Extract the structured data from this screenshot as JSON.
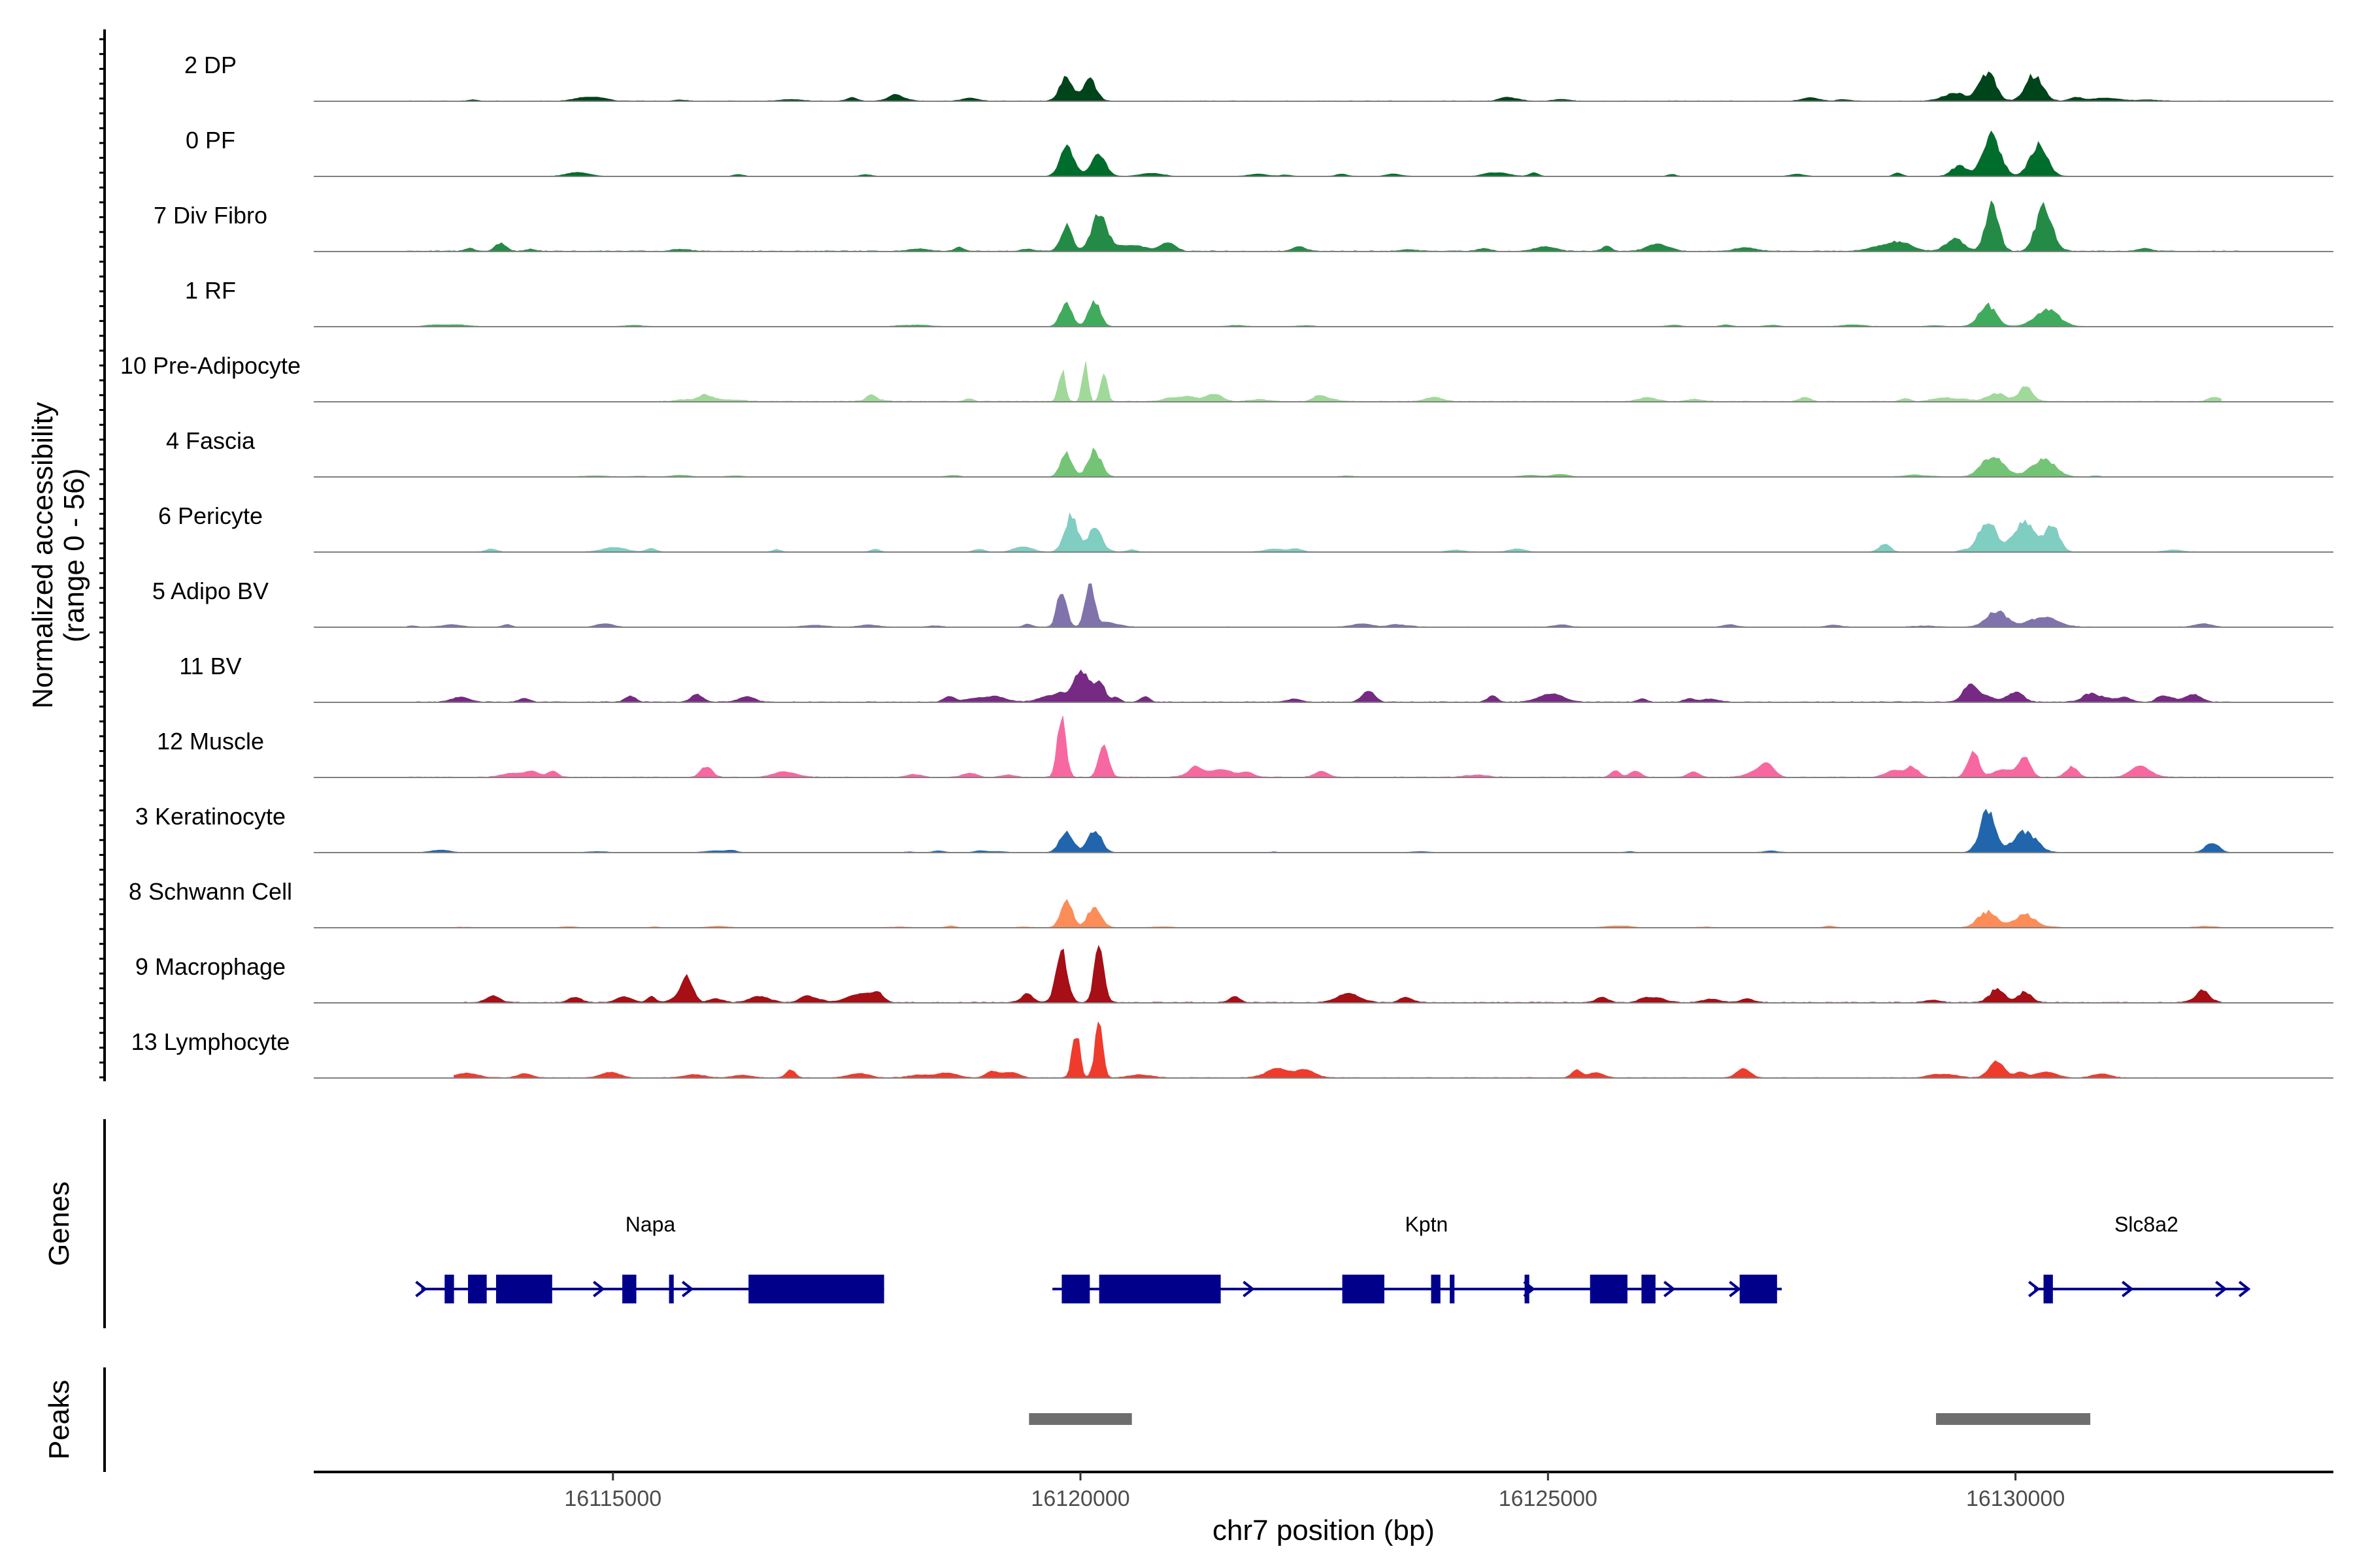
{
  "chart_data": {
    "type": "area",
    "title": "",
    "ylabel": "Normalized accessibility",
    "ylabel_range": "(range 0 - 56)",
    "y_range": [
      0,
      56
    ],
    "xlabel": "chr7 position (bp)",
    "xlim": [
      16111800,
      16133400
    ],
    "x_ticks": [
      16115000,
      16120000,
      16125000,
      16130000
    ],
    "x_tick_labels": [
      "16115000",
      "16120000",
      "16125000",
      "16130000"
    ],
    "track_baseline": "#808080",
    "tracks": [
      {
        "label": "2 DP",
        "color": "#00441b",
        "range": [
          16112800,
          16132400
        ],
        "noise": 1.2,
        "spread": 2,
        "peaks": [
          [
            16119850,
            70,
            18
          ],
          [
            16120100,
            70,
            16
          ],
          [
            16129700,
            85,
            22
          ],
          [
            16130200,
            90,
            20
          ],
          [
            16129350,
            120,
            6
          ]
        ]
      },
      {
        "label": "0 PF",
        "color": "#006d2c",
        "range": [
          16112800,
          16132400
        ],
        "noise": 0.8,
        "spread": 2,
        "peaks": [
          [
            16119850,
            70,
            20
          ],
          [
            16120200,
            70,
            18
          ],
          [
            16129750,
            90,
            30
          ],
          [
            16130250,
            90,
            24
          ],
          [
            16129400,
            80,
            8
          ]
        ]
      },
      {
        "label": "7 Div Fibro",
        "color": "#238b45",
        "range": [
          16112800,
          16132400
        ],
        "noise": 2,
        "spread": 3,
        "peaks": [
          [
            16119850,
            60,
            20
          ],
          [
            16120200,
            80,
            28
          ],
          [
            16129750,
            70,
            34
          ],
          [
            16130300,
            80,
            32
          ],
          [
            16129350,
            90,
            10
          ],
          [
            16113800,
            60,
            6
          ],
          [
            16128700,
            150,
            5
          ]
        ]
      },
      {
        "label": "1 RF",
        "color": "#41ab5d",
        "range": [
          16112800,
          16132400
        ],
        "noise": 0.7,
        "spread": 1,
        "peaks": [
          [
            16119850,
            60,
            18
          ],
          [
            16120150,
            60,
            20
          ],
          [
            16129700,
            90,
            16
          ],
          [
            16130350,
            120,
            12
          ]
        ]
      },
      {
        "label": "10 Pre-Adipocyte",
        "color": "#a1d99b",
        "range": [
          16115500,
          16132200
        ],
        "noise": 1.8,
        "spread": 3,
        "peaks": [
          [
            16119800,
            35,
            24
          ],
          [
            16120050,
            30,
            30
          ],
          [
            16120250,
            35,
            22
          ],
          [
            16129800,
            110,
            6
          ],
          [
            16130100,
            60,
            9
          ],
          [
            16116000,
            80,
            5
          ]
        ]
      },
      {
        "label": "4 Fascia",
        "color": "#74c476",
        "range": [
          16112800,
          16132400
        ],
        "noise": 0.7,
        "spread": 1,
        "peaks": [
          [
            16119850,
            60,
            18
          ],
          [
            16120150,
            70,
            20
          ],
          [
            16129750,
            110,
            16
          ],
          [
            16130300,
            120,
            14
          ]
        ]
      },
      {
        "label": "6 Pericyte",
        "color": "#80cdc1",
        "range": [
          16112800,
          16132400
        ],
        "noise": 1,
        "spread": 2,
        "peaks": [
          [
            16119900,
            70,
            28
          ],
          [
            16120150,
            60,
            18
          ],
          [
            16129700,
            90,
            24
          ],
          [
            16130100,
            120,
            22
          ],
          [
            16130400,
            70,
            20
          ],
          [
            16128600,
            60,
            6
          ]
        ]
      },
      {
        "label": "5 Adipo BV",
        "color": "#8073ac",
        "range": [
          16112800,
          16132200
        ],
        "noise": 1,
        "spread": 2,
        "peaks": [
          [
            16119800,
            50,
            28
          ],
          [
            16120100,
            50,
            32
          ],
          [
            16129800,
            110,
            12
          ],
          [
            16130300,
            150,
            8
          ]
        ]
      },
      {
        "label": "11 BV",
        "color": "#762a83",
        "range": [
          16112900,
          16132400
        ],
        "noise": 1.8,
        "spread": 4,
        "peaks": [
          [
            16120000,
            80,
            20
          ],
          [
            16120200,
            60,
            16
          ],
          [
            16129500,
            70,
            12
          ],
          [
            16130000,
            80,
            8
          ],
          [
            16130800,
            90,
            6
          ],
          [
            16115900,
            60,
            6
          ],
          [
            16124400,
            50,
            5
          ],
          [
            16131900,
            80,
            6
          ]
        ]
      },
      {
        "label": "12 Muscle",
        "color": "#f768a1",
        "range": [
          16112800,
          16132200
        ],
        "noise": 1.5,
        "spread": 4,
        "peaks": [
          [
            16119800,
            45,
            40
          ],
          [
            16120250,
            50,
            28
          ],
          [
            16129550,
            60,
            20
          ],
          [
            16130100,
            60,
            16
          ],
          [
            16130600,
            60,
            8
          ],
          [
            16116000,
            60,
            8
          ],
          [
            16128900,
            60,
            8
          ]
        ]
      },
      {
        "label": "3 Keratinocyte",
        "color": "#2166ac",
        "range": [
          16112800,
          16132400
        ],
        "noise": 0.6,
        "spread": 1,
        "peaks": [
          [
            16119850,
            70,
            16
          ],
          [
            16120150,
            70,
            16
          ],
          [
            16129700,
            80,
            32
          ],
          [
            16130100,
            120,
            16
          ],
          [
            16132100,
            70,
            8
          ]
        ]
      },
      {
        "label": "8 Schwann Cell",
        "color": "#fc8d59",
        "range": [
          16112800,
          16132400
        ],
        "noise": 0.6,
        "spread": 1,
        "peaks": [
          [
            16119850,
            60,
            22
          ],
          [
            16120150,
            70,
            16
          ],
          [
            16129700,
            100,
            12
          ],
          [
            16130100,
            110,
            10
          ]
        ]
      },
      {
        "label": "9 Macrophage",
        "color": "#a50f15",
        "range": [
          16113400,
          16132200
        ],
        "noise": 2,
        "spread": 4,
        "peaks": [
          [
            16119800,
            60,
            40
          ],
          [
            16120200,
            50,
            44
          ],
          [
            16115800,
            60,
            16
          ],
          [
            16129800,
            80,
            10
          ],
          [
            16130100,
            70,
            8
          ],
          [
            16132000,
            50,
            6
          ]
        ]
      },
      {
        "label": "13 Lymphocyte",
        "color": "#ef3b2c",
        "range": [
          16113300,
          16131500
        ],
        "noise": 1.5,
        "spread": 4,
        "peaks": [
          [
            16119950,
            40,
            36
          ],
          [
            16120200,
            40,
            40
          ],
          [
            16129800,
            80,
            12
          ],
          [
            16116900,
            50,
            6
          ],
          [
            16125300,
            50,
            6
          ]
        ]
      }
    ],
    "genes": [
      {
        "name": "Napa",
        "start": 16112950,
        "end": 16117900,
        "label_x": 16115400,
        "exons": [
          [
            16113200,
            16113300
          ],
          [
            16113450,
            16113650
          ],
          [
            16113750,
            16114350
          ],
          [
            16115100,
            16115250
          ],
          [
            16115600,
            16115650
          ],
          [
            16116450,
            16117900
          ]
        ],
        "arrows": [
          16112950,
          16114850,
          16115800
        ]
      },
      {
        "name": "Kptn",
        "start": 16119700,
        "end": 16127500,
        "label_x": 16123700,
        "exons": [
          [
            16119800,
            16120100
          ],
          [
            16120200,
            16121500
          ],
          [
            16122800,
            16123250
          ],
          [
            16123750,
            16123850
          ],
          [
            16123950,
            16124000
          ],
          [
            16124750,
            16124800
          ],
          [
            16125450,
            16125850
          ],
          [
            16126000,
            16126150
          ],
          [
            16127050,
            16127450
          ]
        ],
        "arrows": [
          16121800,
          16124800,
          16126300,
          16127000
        ]
      },
      {
        "name": "Slc8a2",
        "start": 16130200,
        "end": 16132500,
        "label_x": 16131400,
        "exons": [
          [
            16130300,
            16130400
          ]
        ],
        "arrows": [
          16130200,
          16131200,
          16132200,
          16132450
        ]
      }
    ],
    "peaks_track": [
      [
        16119450,
        16120550
      ],
      [
        16129150,
        16130800
      ]
    ],
    "left_labels": {
      "genes": "Genes",
      "peaks": "Peaks"
    }
  }
}
